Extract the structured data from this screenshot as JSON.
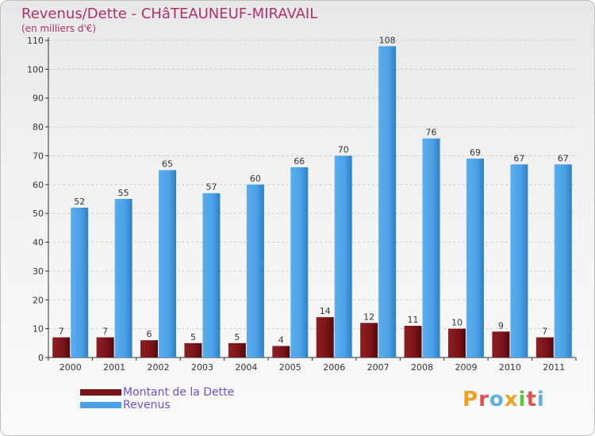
{
  "title": "Revenus/Dette - CHâTEAUNEUF-MIRAVAIL",
  "subtitle": "(en milliers d'€)",
  "legend": [
    {
      "label": "Montant de la Dette",
      "color": "#7a1418"
    },
    {
      "label": "Revenus",
      "color": "#4aa0e6"
    }
  ],
  "logo": {
    "text": "Proxiti",
    "colors": [
      "#f0a020",
      "#e05050",
      "#60b0e0",
      "#f0a020",
      "#60c040",
      "#e05050",
      "#60b0e0"
    ]
  },
  "colors": {
    "dette": "#7a1418",
    "revenus": "#4aa0e6",
    "grid": "#cccccc",
    "axis": "#333333"
  },
  "chart_data": {
    "type": "bar",
    "categories": [
      "2000",
      "2001",
      "2002",
      "2003",
      "2004",
      "2005",
      "2006",
      "2007",
      "2008",
      "2009",
      "2010",
      "2011"
    ],
    "series": [
      {
        "name": "Montant de la Dette",
        "values": [
          7,
          7,
          6,
          5,
          5,
          4,
          14,
          12,
          11,
          10,
          9,
          7
        ]
      },
      {
        "name": "Revenus",
        "values": [
          52,
          55,
          65,
          57,
          60,
          66,
          70,
          108,
          76,
          69,
          67,
          67
        ]
      }
    ],
    "ylim": [
      0,
      110
    ],
    "yticks": [
      0,
      10,
      20,
      30,
      40,
      50,
      60,
      70,
      80,
      90,
      100,
      110
    ],
    "grid": true,
    "legend_position": "bottom-left"
  }
}
